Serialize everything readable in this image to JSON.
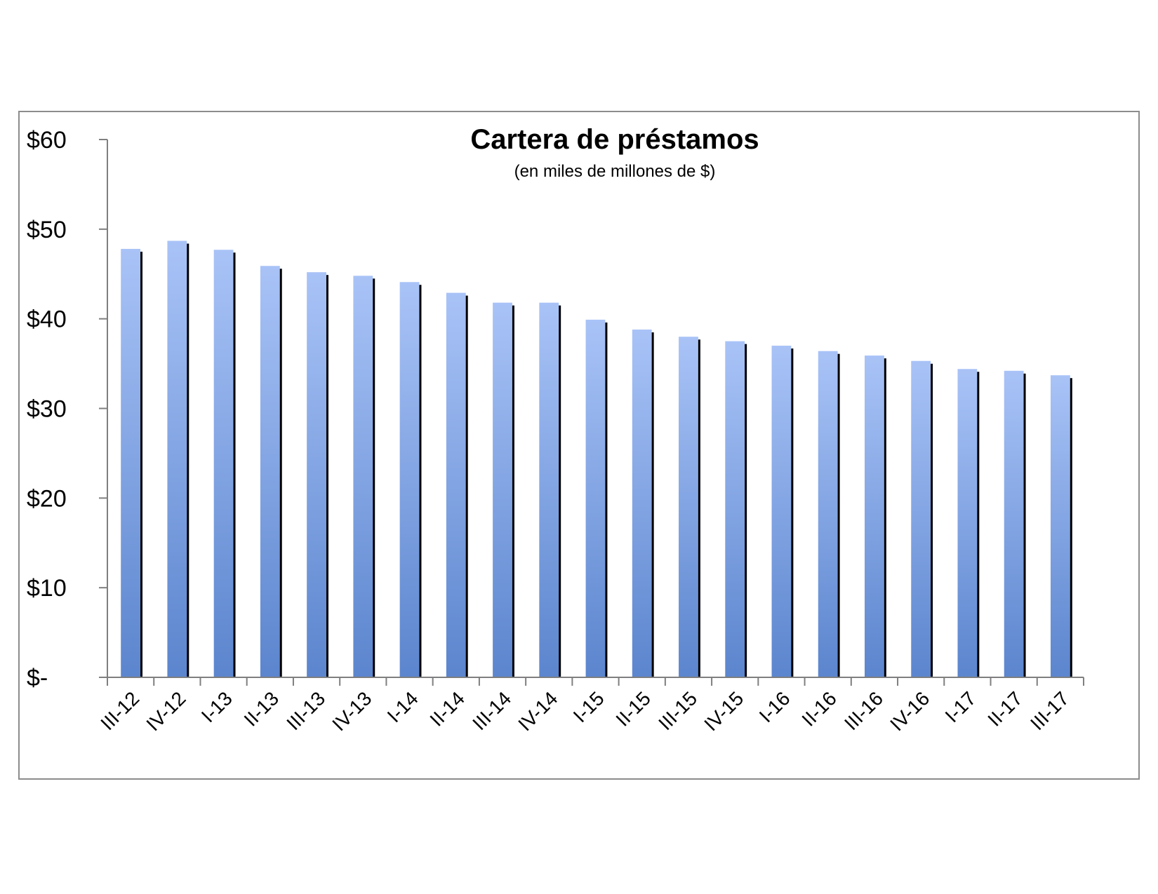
{
  "chart_data": {
    "type": "bar",
    "title": "Cartera de préstamos",
    "subtitle": "(en miles de millones  de $)",
    "categories": [
      "III-12",
      "IV-12",
      "I-13",
      "II-13",
      "III-13",
      "IV-13",
      "I-14",
      "II-14",
      "III-14",
      "IV-14",
      "I-15",
      "II-15",
      "III-15",
      "IV-15",
      "I-16",
      "II-16",
      "III-16",
      "IV-16",
      "I-17",
      "II-17",
      "III-17"
    ],
    "values": [
      47.8,
      48.7,
      47.7,
      45.9,
      45.2,
      44.8,
      44.1,
      42.9,
      41.8,
      41.8,
      39.9,
      38.8,
      38.0,
      37.5,
      37.0,
      36.4,
      35.9,
      35.3,
      34.4,
      34.2,
      33.7
    ],
    "ylim": [
      0,
      60
    ],
    "yticks": [
      0,
      10,
      20,
      30,
      40,
      50,
      60
    ],
    "ytick_labels": [
      "$-",
      "$10",
      "$20",
      "$30",
      "$40",
      "$50",
      "$60"
    ],
    "xlabel": "",
    "ylabel": "",
    "grid": false,
    "legend": "none",
    "colors": {
      "bar_top": "#a9c3f7",
      "bar_bottom": "#5b85ce",
      "shadow": "#000000",
      "axis": "#7f7f7f"
    }
  }
}
